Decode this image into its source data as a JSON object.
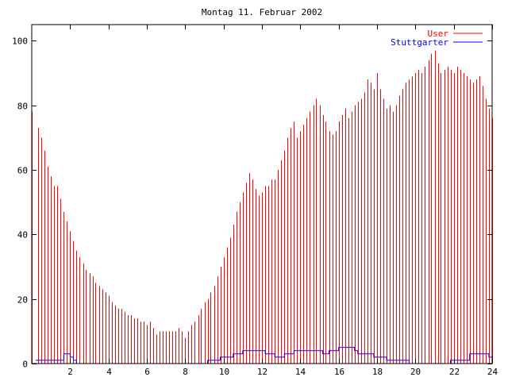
{
  "chart_data": {
    "type": "bar",
    "title": "Montag 11. Februar 2002",
    "xlabel": "",
    "ylabel": "",
    "xlim": [
      0,
      24
    ],
    "ylim": [
      0,
      105
    ],
    "x_ticks": [
      2,
      4,
      6,
      8,
      10,
      12,
      14,
      16,
      18,
      20,
      22,
      24
    ],
    "y_ticks": [
      0,
      20,
      40,
      60,
      80,
      100
    ],
    "grid": false,
    "legend_position": "top-right",
    "series": [
      {
        "name": "User",
        "type": "bar",
        "color": "#ff0000",
        "points": [
          [
            0.0,
            78
          ],
          [
            0.33,
            73
          ],
          [
            0.5,
            70
          ],
          [
            0.67,
            66
          ],
          [
            0.83,
            61
          ],
          [
            1.0,
            58
          ],
          [
            1.17,
            55
          ],
          [
            1.33,
            55
          ],
          [
            1.5,
            51
          ],
          [
            1.67,
            47
          ],
          [
            1.83,
            44
          ],
          [
            2.0,
            41
          ],
          [
            2.17,
            38
          ],
          [
            2.33,
            35
          ],
          [
            2.5,
            33
          ],
          [
            2.67,
            31
          ],
          [
            2.83,
            29
          ],
          [
            3.0,
            28
          ],
          [
            3.17,
            27
          ],
          [
            3.33,
            25
          ],
          [
            3.5,
            24
          ],
          [
            3.67,
            23
          ],
          [
            3.83,
            22
          ],
          [
            4.0,
            21
          ],
          [
            4.17,
            19
          ],
          [
            4.33,
            18
          ],
          [
            4.5,
            17
          ],
          [
            4.67,
            17
          ],
          [
            4.83,
            16
          ],
          [
            5.0,
            15
          ],
          [
            5.17,
            15
          ],
          [
            5.33,
            14
          ],
          [
            5.5,
            14
          ],
          [
            5.67,
            13
          ],
          [
            5.83,
            13
          ],
          [
            6.0,
            12
          ],
          [
            6.17,
            13
          ],
          [
            6.33,
            11
          ],
          [
            6.5,
            9
          ],
          [
            6.67,
            10
          ],
          [
            6.83,
            10
          ],
          [
            7.0,
            10
          ],
          [
            7.17,
            10
          ],
          [
            7.33,
            10
          ],
          [
            7.5,
            10
          ],
          [
            7.67,
            11
          ],
          [
            7.83,
            10
          ],
          [
            8.0,
            8
          ],
          [
            8.17,
            10
          ],
          [
            8.33,
            12
          ],
          [
            8.5,
            13
          ],
          [
            8.67,
            15
          ],
          [
            8.83,
            17
          ],
          [
            9.0,
            19
          ],
          [
            9.17,
            20
          ],
          [
            9.33,
            22
          ],
          [
            9.5,
            24
          ],
          [
            9.67,
            27
          ],
          [
            9.83,
            30
          ],
          [
            10.0,
            33
          ],
          [
            10.17,
            36
          ],
          [
            10.33,
            39
          ],
          [
            10.5,
            43
          ],
          [
            10.67,
            47
          ],
          [
            10.83,
            50
          ],
          [
            11.0,
            53
          ],
          [
            11.17,
            56
          ],
          [
            11.33,
            59
          ],
          [
            11.5,
            57
          ],
          [
            11.67,
            54
          ],
          [
            11.83,
            52
          ],
          [
            12.0,
            53
          ],
          [
            12.17,
            55
          ],
          [
            12.33,
            55
          ],
          [
            12.5,
            57
          ],
          [
            12.67,
            57
          ],
          [
            12.83,
            60
          ],
          [
            13.0,
            63
          ],
          [
            13.17,
            66
          ],
          [
            13.33,
            70
          ],
          [
            13.5,
            73
          ],
          [
            13.67,
            75
          ],
          [
            13.83,
            70
          ],
          [
            14.0,
            72
          ],
          [
            14.17,
            74
          ],
          [
            14.33,
            76
          ],
          [
            14.5,
            78
          ],
          [
            14.67,
            80
          ],
          [
            14.83,
            82
          ],
          [
            15.0,
            80
          ],
          [
            15.17,
            77
          ],
          [
            15.33,
            75
          ],
          [
            15.5,
            72
          ],
          [
            15.67,
            71
          ],
          [
            15.83,
            72
          ],
          [
            16.0,
            75
          ],
          [
            16.17,
            77
          ],
          [
            16.33,
            79
          ],
          [
            16.5,
            76
          ],
          [
            16.67,
            78
          ],
          [
            16.83,
            80
          ],
          [
            17.0,
            81
          ],
          [
            17.17,
            82
          ],
          [
            17.33,
            84
          ],
          [
            17.5,
            88
          ],
          [
            17.67,
            87
          ],
          [
            17.83,
            85
          ],
          [
            18.0,
            90
          ],
          [
            18.17,
            85
          ],
          [
            18.33,
            82
          ],
          [
            18.5,
            79
          ],
          [
            18.67,
            80
          ],
          [
            18.83,
            78
          ],
          [
            19.0,
            80
          ],
          [
            19.17,
            83
          ],
          [
            19.33,
            85
          ],
          [
            19.5,
            87
          ],
          [
            19.67,
            88
          ],
          [
            19.83,
            89
          ],
          [
            20.0,
            90
          ],
          [
            20.17,
            91
          ],
          [
            20.33,
            90
          ],
          [
            20.5,
            92
          ],
          [
            20.67,
            94
          ],
          [
            20.83,
            96
          ],
          [
            21.0,
            97
          ],
          [
            21.17,
            93
          ],
          [
            21.33,
            90
          ],
          [
            21.5,
            91
          ],
          [
            21.67,
            92
          ],
          [
            21.83,
            91
          ],
          [
            22.0,
            90
          ],
          [
            22.17,
            92
          ],
          [
            22.33,
            91
          ],
          [
            22.5,
            90
          ],
          [
            22.67,
            89
          ],
          [
            22.83,
            88
          ],
          [
            23.0,
            87
          ],
          [
            23.17,
            88
          ],
          [
            23.33,
            89
          ],
          [
            23.5,
            86
          ],
          [
            23.67,
            82
          ],
          [
            23.83,
            79
          ],
          [
            24.0,
            76
          ]
        ]
      },
      {
        "name": "Stuttgarter",
        "type": "line",
        "color": "#0000ff",
        "points": [
          [
            0.2,
            1
          ],
          [
            1.5,
            1
          ],
          [
            1.67,
            3
          ],
          [
            2.0,
            2
          ],
          [
            2.17,
            1
          ],
          [
            2.33,
            0
          ],
          [
            3.0,
            0
          ],
          [
            9.0,
            0
          ],
          [
            9.17,
            1
          ],
          [
            9.67,
            1
          ],
          [
            9.83,
            2
          ],
          [
            10.33,
            2
          ],
          [
            10.5,
            3
          ],
          [
            10.83,
            3
          ],
          [
            11.0,
            4
          ],
          [
            11.33,
            4
          ],
          [
            11.5,
            4
          ],
          [
            12.0,
            4
          ],
          [
            12.17,
            3
          ],
          [
            12.5,
            3
          ],
          [
            12.67,
            2
          ],
          [
            13.0,
            2
          ],
          [
            13.17,
            3
          ],
          [
            13.5,
            3
          ],
          [
            13.67,
            4
          ],
          [
            14.33,
            4
          ],
          [
            14.5,
            4
          ],
          [
            15.0,
            4
          ],
          [
            15.17,
            3
          ],
          [
            15.33,
            3
          ],
          [
            15.5,
            4
          ],
          [
            15.83,
            4
          ],
          [
            16.0,
            5
          ],
          [
            16.67,
            5
          ],
          [
            16.83,
            4
          ],
          [
            17.0,
            3
          ],
          [
            17.67,
            3
          ],
          [
            17.83,
            2
          ],
          [
            18.33,
            2
          ],
          [
            18.5,
            1
          ],
          [
            19.5,
            1
          ],
          [
            19.67,
            0
          ],
          [
            21.67,
            0
          ],
          [
            21.83,
            1
          ],
          [
            22.67,
            1
          ],
          [
            22.83,
            3
          ],
          [
            23.67,
            3
          ],
          [
            23.83,
            2
          ],
          [
            24.0,
            3
          ]
        ]
      }
    ]
  }
}
